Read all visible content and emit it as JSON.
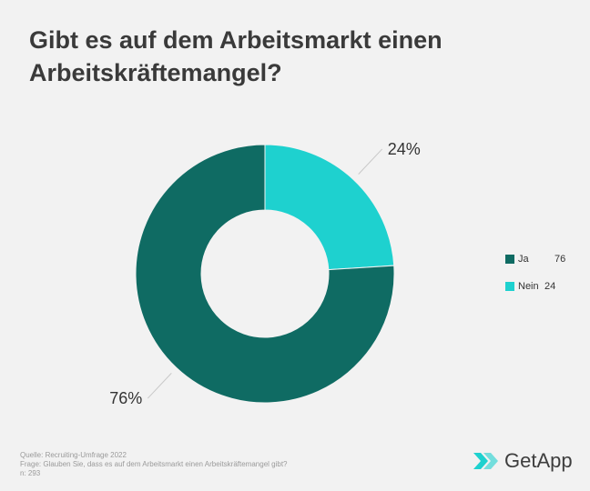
{
  "title_line1": "Gibt es auf dem Arbeitsmarkt einen",
  "title_line2": "Arbeitskräftemangel?",
  "chart_data": {
    "type": "pie",
    "donut": true,
    "title": "Gibt es auf dem Arbeitsmarkt einen Arbeitskräftemangel?",
    "categories": [
      "Ja",
      "Nein"
    ],
    "values": [
      76,
      24
    ],
    "slice_labels": [
      "76%",
      "24%"
    ],
    "colors": [
      "#0f6b63",
      "#1ed1cf"
    ],
    "legend_position": "right"
  },
  "legend": [
    {
      "name": "Ja",
      "value": "76",
      "color": "#0f6b63"
    },
    {
      "name": "Nein",
      "value": "24",
      "color": "#1ed1cf"
    }
  ],
  "footer": {
    "source": "Quelle: Recruiting-Umfrage 2022",
    "question": "Frage: Glauben Sie, dass es auf dem Arbeitsmarkt einen Arbeitskräftemangel gibt?",
    "n": "n: 293"
  },
  "logo": {
    "text": "GetApp",
    "icon": "getapp-chevrons-icon",
    "color": "#1ed1cf"
  }
}
